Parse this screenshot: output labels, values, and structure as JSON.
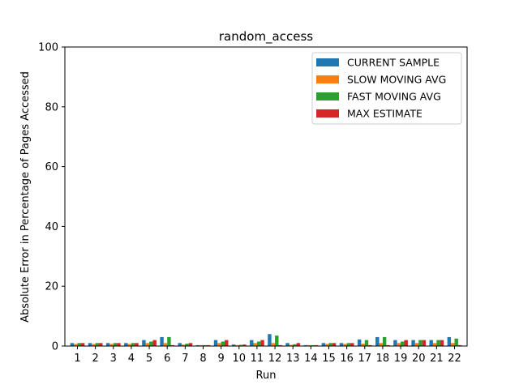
{
  "chart_data": {
    "type": "bar",
    "title": "random_access",
    "xlabel": "Run",
    "ylabel": "Absolute Error in Percentage of Pages Accessed",
    "ylim": [
      0,
      100
    ],
    "yticks": [
      0,
      20,
      40,
      60,
      80,
      100
    ],
    "legend_position": "top-right",
    "categories": [
      "1",
      "2",
      "3",
      "4",
      "5",
      "6",
      "7",
      "8",
      "9",
      "10",
      "11",
      "12",
      "13",
      "14",
      "15",
      "16",
      "17",
      "18",
      "19",
      "20",
      "21",
      "22"
    ],
    "series": [
      {
        "name": "CURRENT SAMPLE",
        "color": "#1f77b4",
        "values": [
          1.0,
          1.0,
          1.0,
          1.0,
          2.0,
          3.0,
          1.0,
          0.3,
          2.0,
          0.5,
          2.0,
          4.0,
          1.0,
          0.3,
          1.0,
          1.0,
          2.2,
          3.0,
          2.0,
          2.0,
          2.0,
          3.0
        ]
      },
      {
        "name": "SLOW MOVING AVG",
        "color": "#ff7f0e",
        "values": [
          0.7,
          0.7,
          0.7,
          0.7,
          1.0,
          1.0,
          0.5,
          0.3,
          1.0,
          0.3,
          1.0,
          1.0,
          0.4,
          0.3,
          0.7,
          0.7,
          0.8,
          1.0,
          1.0,
          1.0,
          1.0,
          1.0
        ]
      },
      {
        "name": "FAST MOVING AVG",
        "color": "#2ca02c",
        "values": [
          1.0,
          1.0,
          1.0,
          1.0,
          1.5,
          3.0,
          0.8,
          0.3,
          1.5,
          0.4,
          1.5,
          3.5,
          0.6,
          0.3,
          1.0,
          1.0,
          2.0,
          3.0,
          1.5,
          2.0,
          2.0,
          2.5
        ]
      },
      {
        "name": "MAX ESTIMATE",
        "color": "#d62728",
        "values": [
          1.0,
          1.0,
          1.0,
          1.0,
          2.0,
          0.3,
          1.0,
          0.3,
          2.0,
          0.5,
          2.0,
          0.3,
          1.0,
          0.3,
          1.0,
          1.0,
          0.3,
          0.3,
          2.0,
          2.0,
          2.0,
          0.3
        ]
      }
    ]
  }
}
